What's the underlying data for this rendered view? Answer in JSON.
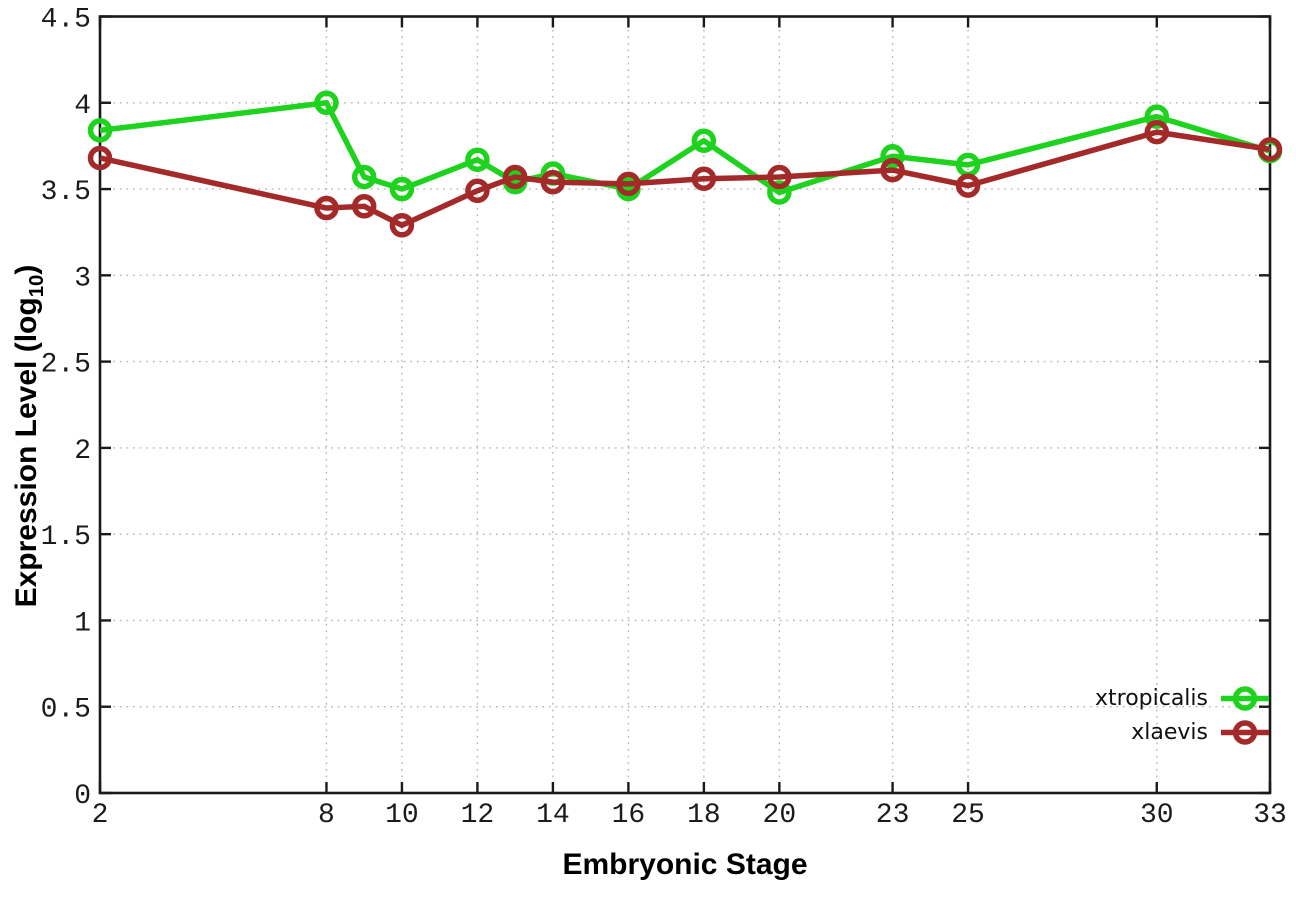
{
  "figure": {
    "xlabel": "Embryonic Stage",
    "ylabel_main": "Expression Level (log",
    "ylabel_sub": "10",
    "ylabel_end": ")"
  },
  "chart_data": {
    "type": "line",
    "title": "",
    "xlabel": "Embryonic Stage",
    "ylabel": "Expression Level (log10)",
    "x": [
      2,
      8,
      9,
      10,
      12,
      13,
      14,
      16,
      18,
      20,
      23,
      25,
      30,
      33
    ],
    "series": [
      {
        "name": "xtropicalis",
        "color": "#1ed31e",
        "values": [
          3.84,
          4.0,
          3.57,
          3.5,
          3.67,
          3.54,
          3.59,
          3.5,
          3.78,
          3.48,
          3.69,
          3.64,
          3.92,
          3.72
        ]
      },
      {
        "name": "xlaevis",
        "color": "#a42a2a",
        "values": [
          3.68,
          3.39,
          3.4,
          3.29,
          3.49,
          3.57,
          3.54,
          3.53,
          3.56,
          3.57,
          3.61,
          3.52,
          3.83,
          3.73
        ]
      }
    ],
    "xticks": [
      2,
      8,
      10,
      12,
      14,
      16,
      18,
      20,
      23,
      25,
      30,
      33
    ],
    "xtick_labels": [
      "2",
      "8",
      "10",
      "12",
      "14",
      "16",
      "18",
      "20",
      "23",
      "25",
      "30",
      "33"
    ],
    "yticks": [
      0,
      0.5,
      1,
      1.5,
      2,
      2.5,
      3,
      3.5,
      4,
      4.5
    ],
    "ytick_labels": [
      "0",
      "0.5",
      "1",
      "1.5",
      "2",
      "2.5",
      "3",
      "3.5",
      "4",
      "4.5"
    ],
    "xlim": [
      2,
      33
    ],
    "ylim": [
      0,
      4.5
    ],
    "grid": "dotted",
    "legend_position": "bottom-right",
    "marker": "open-circle"
  },
  "style_colors": {
    "axis": "#1a1a1a",
    "grid": "#b8b8b8",
    "tick_text": "#1b1b1b",
    "background": "#ffffff"
  }
}
